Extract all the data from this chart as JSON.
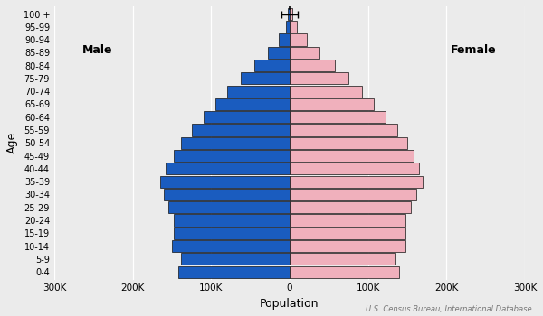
{
  "age_groups": [
    "0-4",
    "5-9",
    "10-14",
    "15-19",
    "20-24",
    "25-29",
    "30-34",
    "35-39",
    "40-44",
    "45-49",
    "50-54",
    "55-59",
    "60-64",
    "65-69",
    "70-74",
    "75-79",
    "80-84",
    "85-89",
    "90-94",
    "95-99",
    "100 +"
  ],
  "male": [
    142000,
    138000,
    150000,
    148000,
    148000,
    155000,
    160000,
    165000,
    158000,
    148000,
    138000,
    125000,
    110000,
    95000,
    80000,
    62000,
    45000,
    28000,
    14000,
    5000,
    2000
  ],
  "female": [
    140000,
    135000,
    148000,
    148000,
    148000,
    155000,
    162000,
    170000,
    165000,
    158000,
    150000,
    138000,
    122000,
    108000,
    92000,
    75000,
    58000,
    38000,
    22000,
    9000,
    3500
  ],
  "male_color": "#1a5cbf",
  "female_color": "#f0b0bc",
  "male_edge_color": "#111111",
  "female_edge_color": "#111111",
  "background_color": "#ebebeb",
  "xlabel": "Population",
  "ylabel": "Age",
  "xlim": 300000,
  "xtick_step": 100000,
  "male_label": "Male",
  "female_label": "Female",
  "source_text": "U.S. Census Bureau, International Database",
  "error_bar_top_value": 10000,
  "bar_height": 0.92
}
